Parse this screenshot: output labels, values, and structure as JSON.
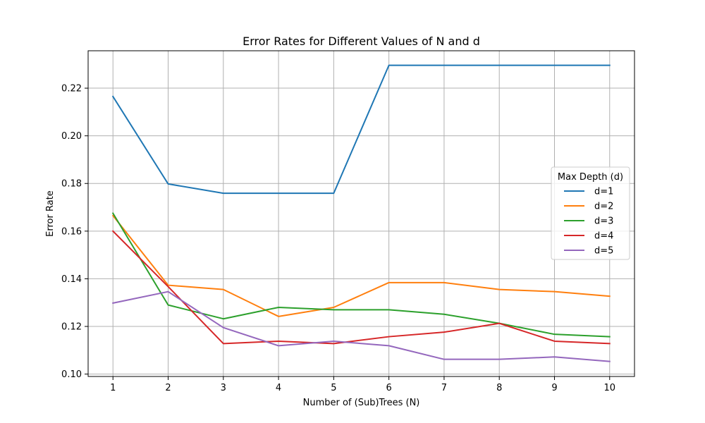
{
  "chart_data": {
    "type": "line",
    "title": "Error Rates for Different Values of N and d",
    "xlabel": "Number of (Sub)Trees (N)",
    "ylabel": "Error Rate",
    "x": [
      1,
      2,
      3,
      4,
      5,
      6,
      7,
      8,
      9,
      10
    ],
    "xlim": [
      0.55,
      10.45
    ],
    "ylim": [
      0.099,
      0.2357
    ],
    "xticks": [
      1,
      2,
      3,
      4,
      5,
      6,
      7,
      8,
      9,
      10
    ],
    "yticks": [
      0.1,
      0.12,
      0.14,
      0.16,
      0.18,
      0.2,
      0.22
    ],
    "ytick_labels": [
      "0.10",
      "0.12",
      "0.14",
      "0.16",
      "0.18",
      "0.20",
      "0.22"
    ],
    "grid": true,
    "legend": {
      "title": "Max Depth (d)",
      "position": "center-right"
    },
    "series": [
      {
        "name": "d=1",
        "color": "#1f77b4",
        "values": [
          0.2165,
          0.1798,
          0.1759,
          0.1759,
          0.1759,
          0.2296,
          0.2296,
          0.2296,
          0.2296,
          0.2296
        ]
      },
      {
        "name": "d=2",
        "color": "#ff7f0e",
        "values": [
          0.1665,
          0.1373,
          0.1355,
          0.1242,
          0.128,
          0.1384,
          0.1384,
          0.1355,
          0.1346,
          0.1327
        ]
      },
      {
        "name": "d=3",
        "color": "#2ca02c",
        "values": [
          0.1675,
          0.129,
          0.1232,
          0.128,
          0.127,
          0.127,
          0.1251,
          0.1213,
          0.1167,
          0.1157
        ]
      },
      {
        "name": "d=4",
        "color": "#d62728",
        "values": [
          0.16,
          0.1367,
          0.1128,
          0.1138,
          0.1128,
          0.1157,
          0.1176,
          0.1213,
          0.1138,
          0.1128
        ]
      },
      {
        "name": "d=5",
        "color": "#9467bd",
        "values": [
          0.1298,
          0.1346,
          0.1195,
          0.1119,
          0.1138,
          0.1119,
          0.1062,
          0.1062,
          0.1072,
          0.1053
        ]
      }
    ]
  }
}
